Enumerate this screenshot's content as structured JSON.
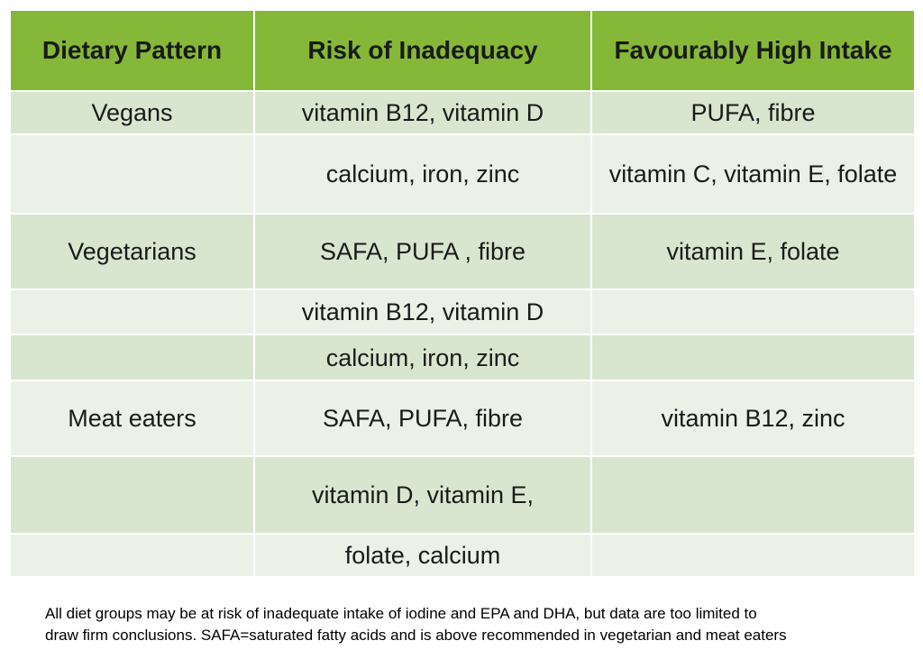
{
  "table": {
    "headers": [
      "Dietary Pattern",
      "Risk of Inadequacy",
      "Favourably High Intake"
    ],
    "rows": [
      [
        "Vegans",
        "vitamin B12, vitamin D",
        "PUFA, fibre"
      ],
      [
        "",
        "calcium, iron, zinc",
        "vitamin C, vitamin E, folate"
      ],
      [
        "Vegetarians",
        "SAFA, PUFA , fibre",
        "vitamin E, folate"
      ],
      [
        "",
        "vitamin B12, vitamin D",
        ""
      ],
      [
        "",
        "calcium, iron, zinc",
        ""
      ],
      [
        "Meat eaters",
        "SAFA, PUFA, fibre",
        "vitamin B12, zinc"
      ],
      [
        "",
        "vitamin D, vitamin E,",
        ""
      ],
      [
        "",
        "folate, calcium",
        ""
      ]
    ]
  },
  "footnote": {
    "line1": "All diet groups may be at risk of inadequate intake of iodine and EPA and DHA, but data are too limited to",
    "line2": "draw firm conclusions. SAFA=saturated fatty acids and is above recommended in vegetarian and meat eaters"
  },
  "colors": {
    "header_bg": "#85b838",
    "row_dark": "#d8e6cf",
    "row_light": "#ebf1e7"
  }
}
